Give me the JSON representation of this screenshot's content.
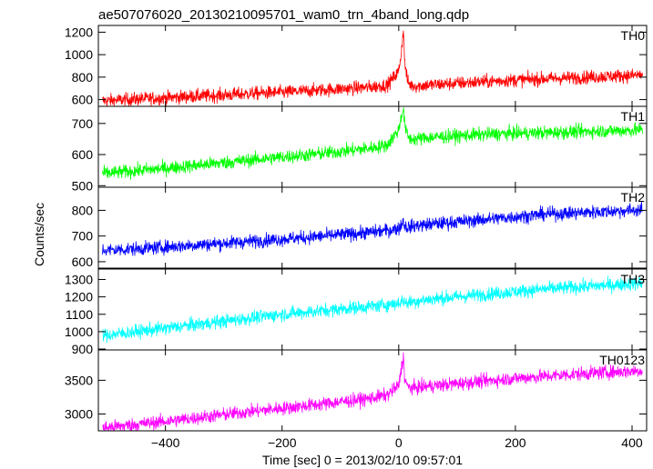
{
  "title": "ae507076020_20130210095701_wam0_trn_4band_long.qdp",
  "ylabel": "Counts/sec",
  "xlabel": "Time [sec] 0 = 2013/02/10 09:57:01",
  "chart_data": {
    "type": "line",
    "title": "ae507076020_20130210095701_wam0_trn_4band_long.qdp",
    "xlabel": "Time [sec] 0 = 2013/02/10 09:57:01",
    "ylabel": "Counts/sec",
    "xlim": [
      -515,
      425
    ],
    "x_ticks": [
      -400,
      -200,
      0,
      200,
      400
    ],
    "x": [
      -500,
      -450,
      -400,
      -350,
      -300,
      -250,
      -200,
      -150,
      -100,
      -50,
      -20,
      0,
      5,
      8,
      10,
      15,
      20,
      30,
      50,
      100,
      150,
      200,
      250,
      300,
      350,
      400,
      415
    ],
    "series": [
      {
        "name": "TH0",
        "color": "#ff0000",
        "ylim": [
          540,
          1260
        ],
        "ticks": [
          600,
          800,
          1000,
          1200
        ],
        "values": [
          590,
          605,
          615,
          630,
          640,
          655,
          665,
          680,
          695,
          710,
          730,
          850,
          1050,
          1240,
          950,
          760,
          730,
          720,
          730,
          745,
          760,
          775,
          785,
          795,
          805,
          815,
          820
        ]
      },
      {
        "name": "TH1",
        "color": "#00ff00",
        "ylim": [
          495,
          755
        ],
        "ticks": [
          500,
          600,
          700
        ],
        "values": [
          540,
          548,
          556,
          565,
          574,
          583,
          592,
          600,
          610,
          620,
          630,
          680,
          730,
          745,
          700,
          660,
          650,
          650,
          655,
          660,
          665,
          668,
          670,
          673,
          676,
          678,
          680
        ]
      },
      {
        "name": "TH2",
        "color": "#0000ff",
        "ylim": [
          575,
          890
        ],
        "ticks": [
          600,
          700,
          800
        ],
        "values": [
          645,
          650,
          657,
          665,
          672,
          680,
          688,
          696,
          705,
          714,
          722,
          730,
          745,
          760,
          740,
          735,
          737,
          740,
          745,
          755,
          765,
          775,
          785,
          790,
          795,
          800,
          802
        ]
      },
      {
        "name": "TH3",
        "color": "#00ffff",
        "ylim": [
          895,
          1360
        ],
        "ticks": [
          900,
          1000,
          1100,
          1200,
          1300
        ],
        "values": [
          980,
          1000,
          1020,
          1040,
          1060,
          1080,
          1100,
          1115,
          1130,
          1145,
          1155,
          1165,
          1175,
          1180,
          1170,
          1165,
          1170,
          1175,
          1185,
          1200,
          1215,
          1230,
          1245,
          1255,
          1265,
          1275,
          1280
        ]
      },
      {
        "name": "TH0123",
        "color": "#ff00ff",
        "ylim": [
          2750,
          3950
        ],
        "ticks": [
          3000,
          3500
        ],
        "values": [
          2800,
          2845,
          2890,
          2940,
          2990,
          3040,
          3085,
          3130,
          3180,
          3230,
          3280,
          3420,
          3700,
          3850,
          3550,
          3400,
          3390,
          3390,
          3410,
          3450,
          3490,
          3530,
          3560,
          3590,
          3615,
          3635,
          3645
        ]
      }
    ]
  }
}
